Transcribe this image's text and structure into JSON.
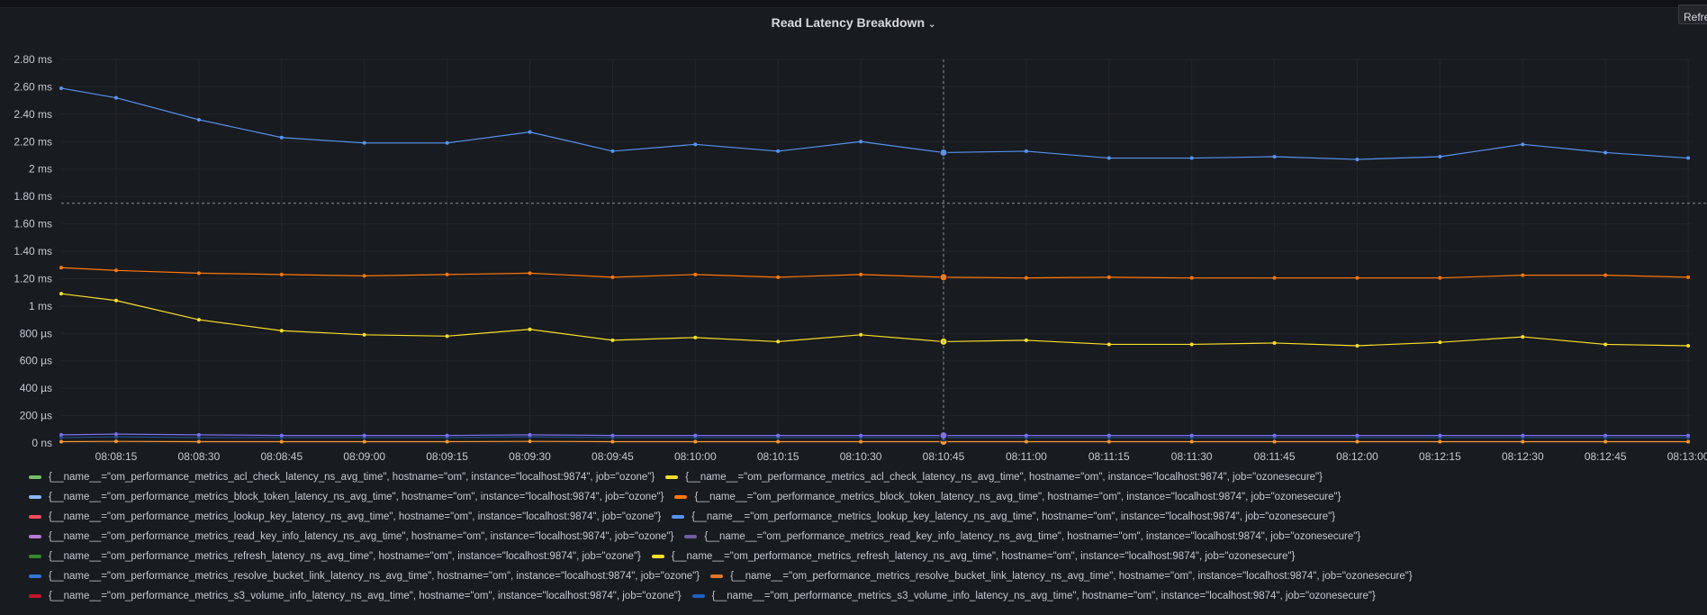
{
  "panel": {
    "title": "Read Latency Breakdown",
    "title_icon": "chevron-down-icon",
    "refresh_label": "Refresh"
  },
  "chart_data": {
    "type": "line",
    "title": "Read Latency Breakdown",
    "ylabel": "",
    "xlabel": "",
    "ylim": [
      0,
      2.8
    ],
    "y_unit": "ms",
    "y_ticks": [
      {
        "value": 2.8,
        "label": "2.80 ms"
      },
      {
        "value": 2.6,
        "label": "2.60 ms"
      },
      {
        "value": 2.4,
        "label": "2.40 ms"
      },
      {
        "value": 2.2,
        "label": "2.20 ms"
      },
      {
        "value": 2.0,
        "label": "2 ms"
      },
      {
        "value": 1.8,
        "label": "1.80 ms"
      },
      {
        "value": 1.6,
        "label": "1.60 ms"
      },
      {
        "value": 1.4,
        "label": "1.40 ms"
      },
      {
        "value": 1.2,
        "label": "1.20 ms"
      },
      {
        "value": 1.0,
        "label": "1 ms"
      },
      {
        "value": 0.8,
        "label": "800 µs"
      },
      {
        "value": 0.6,
        "label": "600 µs"
      },
      {
        "value": 0.4,
        "label": "400 µs"
      },
      {
        "value": 0.2,
        "label": "200 µs"
      },
      {
        "value": 0.0,
        "label": "0 ns"
      }
    ],
    "x": [
      "08:08:05",
      "08:08:15",
      "08:08:30",
      "08:08:45",
      "08:09:00",
      "08:09:15",
      "08:09:30",
      "08:09:45",
      "08:10:00",
      "08:10:15",
      "08:10:30",
      "08:10:45",
      "08:11:00",
      "08:11:15",
      "08:11:30",
      "08:11:45",
      "08:12:00",
      "08:12:15",
      "08:12:30",
      "08:12:45",
      "08:13:00"
    ],
    "x_ticks": [
      "08:08:15",
      "08:08:30",
      "08:08:45",
      "08:09:00",
      "08:09:15",
      "08:09:30",
      "08:09:45",
      "08:10:00",
      "08:10:15",
      "08:10:30",
      "08:10:45",
      "08:11:00",
      "08:11:15",
      "08:11:30",
      "08:11:45",
      "08:12:00",
      "08:12:15",
      "08:12:30",
      "08:12:45",
      "08:13:00"
    ],
    "hover": {
      "x": "08:10:45",
      "y": 1.75
    },
    "series": [
      {
        "name": "{__name__=\"om_performance_metrics_lookup_key_latency_ns_avg_time\", hostname=\"om\", instance=\"localhost:9874\", job=\"ozonesecure\"}",
        "color": "#5794f2",
        "values": [
          2.59,
          2.52,
          2.36,
          2.23,
          2.19,
          2.19,
          2.27,
          2.13,
          2.18,
          2.13,
          2.2,
          2.12,
          2.13,
          2.08,
          2.08,
          2.09,
          2.07,
          2.09,
          2.18,
          2.12,
          2.08
        ]
      },
      {
        "name": "{__name__=\"om_performance_metrics_resolve_bucket_link_latency_ns_avg_time\", hostname=\"om\", instance=\"localhost:9874\", job=\"ozonesecure\"}",
        "color": "#ff780a",
        "values": [
          1.28,
          1.26,
          1.24,
          1.23,
          1.22,
          1.23,
          1.24,
          1.21,
          1.23,
          1.21,
          1.23,
          1.21,
          1.205,
          1.21,
          1.205,
          1.205,
          1.205,
          1.205,
          1.225,
          1.225,
          1.21
        ]
      },
      {
        "name": "{__name__=\"om_performance_metrics_block_token_latency_ns_avg_time\", hostname=\"om\", instance=\"localhost:9874\", job=\"ozonesecure\"}",
        "color": "#fade2a",
        "values": [
          1.09,
          1.04,
          0.9,
          0.82,
          0.79,
          0.78,
          0.83,
          0.75,
          0.77,
          0.74,
          0.79,
          0.74,
          0.75,
          0.72,
          0.72,
          0.73,
          0.71,
          0.735,
          0.775,
          0.72,
          0.71
        ]
      },
      {
        "name": "{__name__=\"om_performance_metrics_read_key_info_latency_ns_avg_time\", hostname=\"om\", instance=\"localhost:9874\", job=\"ozonesecure\"}",
        "color": "#7c6ef2",
        "values": [
          0.06,
          0.065,
          0.06,
          0.055,
          0.055,
          0.055,
          0.06,
          0.055,
          0.055,
          0.055,
          0.055,
          0.055,
          0.055,
          0.055,
          0.055,
          0.055,
          0.055,
          0.055,
          0.055,
          0.055,
          0.055
        ]
      },
      {
        "name": "{__name__=\"om_performance_metrics_s3_volume_info_latency_ns_avg_time\", hostname=\"om\", instance=\"localhost:9874\", job=\"ozonesecure\"}",
        "color": "#1f4f8f",
        "values": [
          0.04,
          0.045,
          0.04,
          0.04,
          0.04,
          0.04,
          0.045,
          0.04,
          0.04,
          0.04,
          0.04,
          0.04,
          0.04,
          0.04,
          0.04,
          0.04,
          0.04,
          0.04,
          0.04,
          0.04,
          0.04
        ]
      },
      {
        "name": "{__name__=\"om_performance_metrics_acl_check_latency_ns_avg_time\", hostname=\"om\", instance=\"localhost:9874\", job=\"ozonesecure\"}",
        "color": "#ff9830",
        "values": [
          0.01,
          0.012,
          0.01,
          0.01,
          0.01,
          0.01,
          0.012,
          0.01,
          0.01,
          0.01,
          0.01,
          0.01,
          0.01,
          0.01,
          0.01,
          0.01,
          0.01,
          0.01,
          0.01,
          0.01,
          0.01
        ]
      }
    ],
    "legend": [
      [
        {
          "label": "{__name__=\"om_performance_metrics_acl_check_latency_ns_avg_time\", hostname=\"om\", instance=\"localhost:9874\", job=\"ozone\"}",
          "color": "#73bf69"
        },
        {
          "label": "{__name__=\"om_performance_metrics_acl_check_latency_ns_avg_time\", hostname=\"om\", instance=\"localhost:9874\", job=\"ozonesecure\"}",
          "color": "#fade2a"
        }
      ],
      [
        {
          "label": "{__name__=\"om_performance_metrics_block_token_latency_ns_avg_time\", hostname=\"om\", instance=\"localhost:9874\", job=\"ozone\"}",
          "color": "#8ab8ff"
        },
        {
          "label": "{__name__=\"om_performance_metrics_block_token_latency_ns_avg_time\", hostname=\"om\", instance=\"localhost:9874\", job=\"ozonesecure\"}",
          "color": "#ff780a"
        }
      ],
      [
        {
          "label": "{__name__=\"om_performance_metrics_lookup_key_latency_ns_avg_time\", hostname=\"om\", instance=\"localhost:9874\", job=\"ozone\"}",
          "color": "#f2495c"
        },
        {
          "label": "{__name__=\"om_performance_metrics_lookup_key_latency_ns_avg_time\", hostname=\"om\", instance=\"localhost:9874\", job=\"ozonesecure\"}",
          "color": "#5794f2"
        }
      ],
      [
        {
          "label": "{__name__=\"om_performance_metrics_read_key_info_latency_ns_avg_time\", hostname=\"om\", instance=\"localhost:9874\", job=\"ozone\"}",
          "color": "#b877d9"
        },
        {
          "label": "{__name__=\"om_performance_metrics_read_key_info_latency_ns_avg_time\", hostname=\"om\", instance=\"localhost:9874\", job=\"ozonesecure\"}",
          "color": "#705da0"
        }
      ],
      [
        {
          "label": "{__name__=\"om_performance_metrics_refresh_latency_ns_avg_time\", hostname=\"om\", instance=\"localhost:9874\", job=\"ozone\"}",
          "color": "#37872d"
        },
        {
          "label": "{__name__=\"om_performance_metrics_refresh_latency_ns_avg_time\", hostname=\"om\", instance=\"localhost:9874\", job=\"ozonesecure\"}",
          "color": "#fade2a"
        }
      ],
      [
        {
          "label": "{__name__=\"om_performance_metrics_resolve_bucket_link_latency_ns_avg_time\", hostname=\"om\", instance=\"localhost:9874\", job=\"ozone\"}",
          "color": "#3274d9"
        },
        {
          "label": "{__name__=\"om_performance_metrics_resolve_bucket_link_latency_ns_avg_time\", hostname=\"om\", instance=\"localhost:9874\", job=\"ozonesecure\"}",
          "color": "#e0752d"
        }
      ],
      [
        {
          "label": "{__name__=\"om_performance_metrics_s3_volume_info_latency_ns_avg_time\", hostname=\"om\", instance=\"localhost:9874\", job=\"ozone\"}",
          "color": "#c4162a"
        },
        {
          "label": "{__name__=\"om_performance_metrics_s3_volume_info_latency_ns_avg_time\", hostname=\"om\", instance=\"localhost:9874\", job=\"ozonesecure\"}",
          "color": "#1f60c4"
        }
      ]
    ]
  }
}
